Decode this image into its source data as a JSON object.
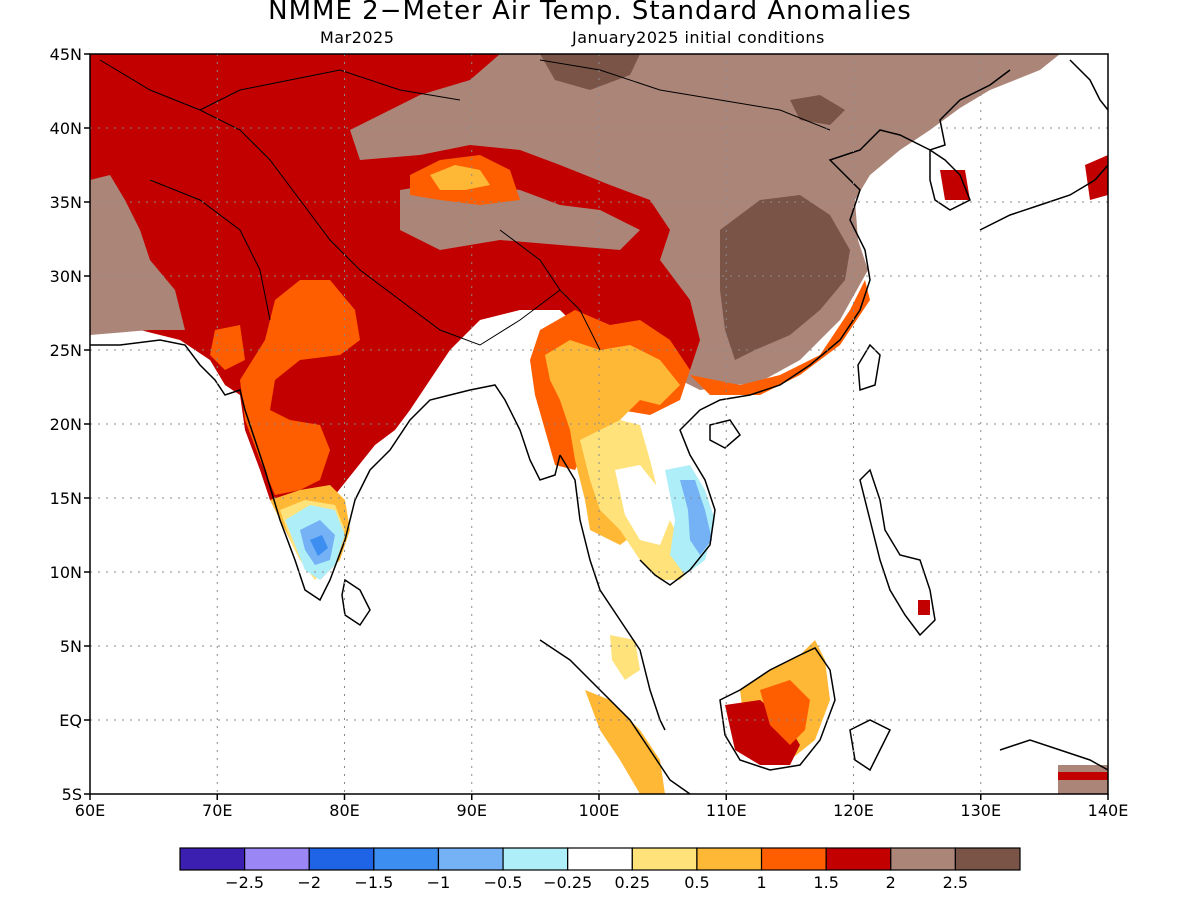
{
  "header": {
    "title": "NMME 2−Meter Air Temp. Standard Anomalies",
    "valid_month": "Mar2025",
    "initial_conditions": "January2025 initial conditions"
  },
  "map": {
    "lon_range": [
      60,
      140
    ],
    "lat_range": [
      -5,
      45
    ],
    "x_ticks": [
      {
        "value": 60,
        "label": "60E"
      },
      {
        "value": 70,
        "label": "70E"
      },
      {
        "value": 80,
        "label": "80E"
      },
      {
        "value": 90,
        "label": "90E"
      },
      {
        "value": 100,
        "label": "100E"
      },
      {
        "value": 110,
        "label": "110E"
      },
      {
        "value": 120,
        "label": "120E"
      },
      {
        "value": 130,
        "label": "130E"
      },
      {
        "value": 140,
        "label": "140E"
      }
    ],
    "y_ticks": [
      {
        "value": 45,
        "label": "45N"
      },
      {
        "value": 40,
        "label": "40N"
      },
      {
        "value": 35,
        "label": "35N"
      },
      {
        "value": 30,
        "label": "30N"
      },
      {
        "value": 25,
        "label": "25N"
      },
      {
        "value": 20,
        "label": "20N"
      },
      {
        "value": 15,
        "label": "15N"
      },
      {
        "value": 10,
        "label": "10N"
      },
      {
        "value": 5,
        "label": "5N"
      },
      {
        "value": 0,
        "label": "EQ"
      },
      {
        "value": -5,
        "label": "5S"
      }
    ],
    "grid": "dotted"
  },
  "legend": {
    "bins": [
      {
        "color": "#3a1fb0"
      },
      {
        "color": "#9b86f5"
      },
      {
        "color": "#1f64e6"
      },
      {
        "color": "#3c8ef0"
      },
      {
        "color": "#74b1f5"
      },
      {
        "color": "#aeeef8"
      },
      {
        "color": "#ffffff"
      },
      {
        "color": "#ffe27a"
      },
      {
        "color": "#ffb835"
      },
      {
        "color": "#ff5e00"
      },
      {
        "color": "#c20000"
      },
      {
        "color": "#ac8579"
      },
      {
        "color": "#7a5447"
      }
    ],
    "labels": [
      "−2.5",
      "−2",
      "−1.5",
      "−1",
      "−0.5",
      "−0.25",
      "0.25",
      "0.5",
      "1",
      "1.5",
      "2",
      "2.5"
    ]
  },
  "colors": {
    "brown_dark": "#7a5447",
    "brown": "#ac8579",
    "dark_red": "#c20000",
    "red_orange": "#ff5e00",
    "orange": "#ffb835",
    "light_yellow": "#ffe27a",
    "light_cyan": "#aeeef8",
    "light_blue": "#74b1f5",
    "blue": "#3c8ef0"
  }
}
